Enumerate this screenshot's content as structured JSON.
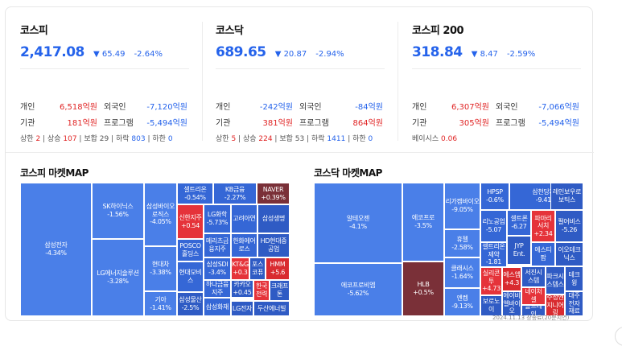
{
  "colors": {
    "up": "#e02424",
    "down": "#2563eb"
  },
  "panels": [
    {
      "title": "코스피",
      "value": "2,417.08",
      "change": "▼ 65.49",
      "rate": "-2.64%",
      "rows": [
        {
          "l1": "개인",
          "v1": "6,518억원",
          "l2": "외국인",
          "v2": "-7,120억원"
        },
        {
          "l1": "기관",
          "v1": "181억원",
          "l2": "프로그램",
          "v2": "-5,494억원"
        }
      ],
      "breadth": [
        {
          "label": "상한",
          "value": "2"
        },
        {
          "label": "상승",
          "value": "107"
        },
        {
          "label": "보합",
          "value": "29"
        },
        {
          "label": "하락",
          "value": "803"
        },
        {
          "label": "하한",
          "value": "0"
        }
      ]
    },
    {
      "title": "코스닥",
      "value": "689.65",
      "change": "▼ 20.87",
      "rate": "-2.94%",
      "rows": [
        {
          "l1": "개인",
          "v1": "-242억원",
          "l2": "외국인",
          "v2": "-84억원"
        },
        {
          "l1": "기관",
          "v1": "381억원",
          "l2": "프로그램",
          "v2": "864억원"
        }
      ],
      "breadth": [
        {
          "label": "상한",
          "value": "5"
        },
        {
          "label": "상승",
          "value": "224"
        },
        {
          "label": "보합",
          "value": "53"
        },
        {
          "label": "하락",
          "value": "1411"
        },
        {
          "label": "하한",
          "value": "0"
        }
      ]
    },
    {
      "title": "코스피 200",
      "value": "318.84",
      "change": "▼ 8.47",
      "rate": "-2.59%",
      "rows": [
        {
          "l1": "개인",
          "v1": "6,307억원",
          "l2": "외국인",
          "v2": "-7,066억원"
        },
        {
          "l1": "기관",
          "v1": "305억원",
          "l2": "프로그램",
          "v2": "-5,494억원"
        }
      ],
      "basis_label": "베이시스",
      "basis_value": "0.06"
    }
  ],
  "kospi_map": {
    "title": "코스피 마켓MAP",
    "cells": [
      {
        "name": "삼성전자",
        "change": "-4.34%"
      },
      {
        "name": "SK하이닉스",
        "change": "-1.56%"
      },
      {
        "name": "LG에너지솔루션",
        "change": "-3.28%"
      },
      {
        "name": "삼성바이오로직스",
        "change": "-4.05%"
      },
      {
        "name": "현대차",
        "change": "-3.38%"
      },
      {
        "name": "기아",
        "change": "-1.41%"
      },
      {
        "name": "셀트리온",
        "change": "-0.54%"
      },
      {
        "name": "신한지주",
        "change": "+0.54"
      },
      {
        "name": "POSCO홀딩스",
        "change": ""
      },
      {
        "name": "현대모비스",
        "change": ""
      },
      {
        "name": "삼성물산",
        "change": "-2.5%"
      },
      {
        "name": "KB금융",
        "change": "-2.27%"
      },
      {
        "name": "NAVER",
        "change": "+0.39%"
      },
      {
        "name": "LG화학",
        "change": "-5.73%"
      },
      {
        "name": "고려아연",
        "change": ""
      },
      {
        "name": "삼성생명",
        "change": ""
      },
      {
        "name": "메리츠금융지주",
        "change": ""
      },
      {
        "name": "한화에어로스",
        "change": ""
      },
      {
        "name": "HD현대중공업",
        "change": ""
      },
      {
        "name": "삼성SDI",
        "change": "-3.4%"
      },
      {
        "name": "KT&G",
        "change": "+0.3"
      },
      {
        "name": "포스코퓨",
        "change": ""
      },
      {
        "name": "HMM",
        "change": "+5.6"
      },
      {
        "name": "하나금융지주",
        "change": ""
      },
      {
        "name": "카카오",
        "change": "+0.45"
      },
      {
        "name": "한국전력",
        "change": ""
      },
      {
        "name": "크래프톤",
        "change": ""
      },
      {
        "name": "삼성화재",
        "change": ""
      },
      {
        "name": "LG전자",
        "change": ""
      },
      {
        "name": "두산에너빌",
        "change": ""
      }
    ]
  },
  "kosdaq_map": {
    "title": "코스닥 마켓MAP",
    "cells": [
      {
        "name": "알테오젠",
        "change": "-4.1%"
      },
      {
        "name": "에코프로비엠",
        "change": "-5.62%"
      },
      {
        "name": "에코프로",
        "change": "-3.5%"
      },
      {
        "name": "HLB",
        "change": "+0.5%"
      },
      {
        "name": "리가켐바이오",
        "change": "-9.05%"
      },
      {
        "name": "휴젤",
        "change": "-2.58%"
      },
      {
        "name": "클래시스",
        "change": "-1.64%"
      },
      {
        "name": "엔켐",
        "change": "-9.13%"
      },
      {
        "name": "HPSP",
        "change": "-0.6%"
      },
      {
        "name": "삼천당제약",
        "change": "-9.41%"
      },
      {
        "name": "레인보우로보틱스",
        "change": ""
      },
      {
        "name": "리노공업",
        "change": "-5.07"
      },
      {
        "name": "셀트론",
        "change": "-6.27"
      },
      {
        "name": "파마리서치",
        "change": "+2.34"
      },
      {
        "name": "펄어비스",
        "change": "-5.26"
      },
      {
        "name": "셀트리온제약",
        "change": "-1.81"
      },
      {
        "name": "JYP Ent.",
        "change": ""
      },
      {
        "name": "에스티팜",
        "change": ""
      },
      {
        "name": "이오테크닉스",
        "change": ""
      },
      {
        "name": "실리콘투",
        "change": "+4.73"
      },
      {
        "name": "에스엠",
        "change": "+4.3"
      },
      {
        "name": "서진시스템",
        "change": ""
      },
      {
        "name": "파크시스템스",
        "change": ""
      },
      {
        "name": "테크윙",
        "change": ""
      },
      {
        "name": "보로노이",
        "change": ""
      },
      {
        "name": "에이비엘바이오",
        "change": ""
      },
      {
        "name": "네이처셀",
        "change": ""
      },
      {
        "name": "솔브레인",
        "change": ""
      },
      {
        "name": "주성엔지니어링",
        "change": ""
      },
      {
        "name": "대주전자재료",
        "change": ""
      }
    ]
  },
  "map_note": "2024.11.13 장종료(20분지연)"
}
